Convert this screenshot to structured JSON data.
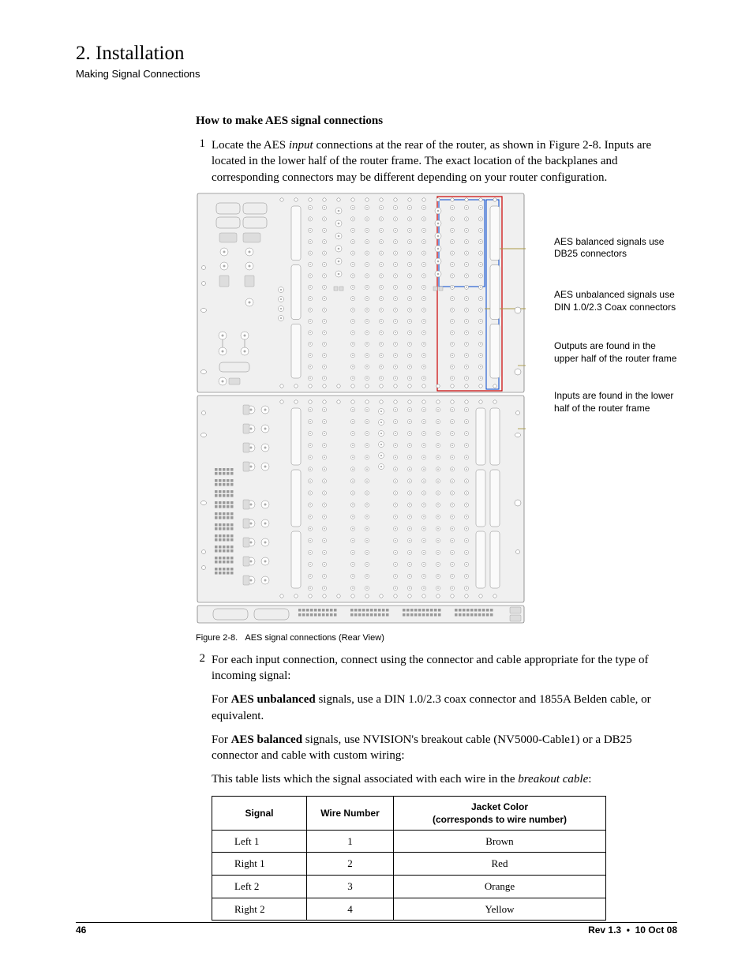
{
  "header": {
    "chapter_title": "2. Installation",
    "chapter_sub": "Making Signal Connections"
  },
  "section": {
    "subheading": "How to make AES signal connections",
    "step1_num": "1",
    "step1_pre": "Locate the AES ",
    "step1_em": "input",
    "step1_post": " connections at the rear of the router, as shown in Figure 2-8. Inputs are located in the lower half of the router frame. The exact location of the backplanes and corresponding connectors may be different depending on your router configuration.",
    "step2_num": "2",
    "step2_text": "For each input connection, connect using the connector and cable appropriate for the type of incoming signal:",
    "para1_pre": "For ",
    "para1_strong": "AES unbalanced",
    "para1_post": " signals, use a DIN 1.0/2.3 coax connector and 1855A Belden cable, or equivalent.",
    "para2_pre": "For ",
    "para2_strong": "AES balanced",
    "para2_post": " signals, use NVISION's breakout cable (NV5000-Cable1) or a DB25 connector and cable with custom wiring:",
    "para3_pre": "This table lists which the signal associated with each wire in the ",
    "para3_em": "breakout cable",
    "para3_post": ":"
  },
  "figure": {
    "caption": "Figure 2-8.   AES signal connections (Rear View)",
    "callouts": {
      "c1": "AES balanced signals use DB25 connectors",
      "c2": "AES unbalanced signals use DIN 1.0/2.3 Coax connectors",
      "c3": "Outputs are found in the upper half of the router frame",
      "c4": "Inputs are found in the lower half of the router frame"
    },
    "colors": {
      "chassis_fill": "#f0f0f0",
      "chassis_stroke": "#555555",
      "redbox": "#cc0000",
      "bluebox": "#0044cc",
      "callout_line": "#aa9944"
    }
  },
  "table": {
    "h1": "Signal",
    "h2": "Wire Number",
    "h3a": "Jacket Color",
    "h3b": "(corresponds to wire number)",
    "rows": [
      {
        "sig": "Left 1",
        "num": "1",
        "color": "Brown"
      },
      {
        "sig": "Right 1",
        "num": "2",
        "color": "Red"
      },
      {
        "sig": "Left 2",
        "num": "3",
        "color": "Orange"
      },
      {
        "sig": "Right 2",
        "num": "4",
        "color": "Yellow"
      }
    ]
  },
  "footer": {
    "page": "46",
    "rev": "Rev 1.3  •  10 Oct 08"
  }
}
